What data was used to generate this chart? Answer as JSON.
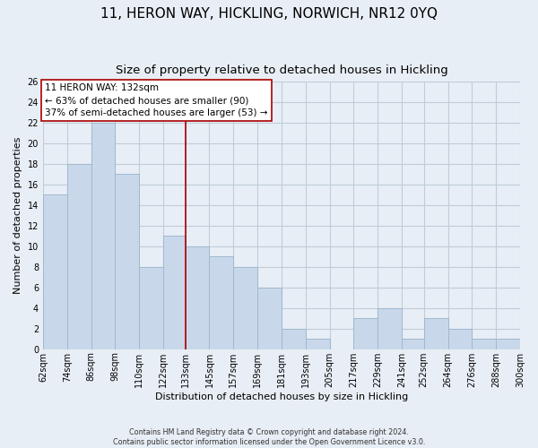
{
  "title": "11, HERON WAY, HICKLING, NORWICH, NR12 0YQ",
  "subtitle": "Size of property relative to detached houses in Hickling",
  "xlabel": "Distribution of detached houses by size in Hickling",
  "ylabel": "Number of detached properties",
  "footer_line1": "Contains HM Land Registry data © Crown copyright and database right 2024.",
  "footer_line2": "Contains public sector information licensed under the Open Government Licence v3.0.",
  "bar_edges": [
    62,
    74,
    86,
    98,
    110,
    122,
    133,
    145,
    157,
    169,
    181,
    193,
    205,
    217,
    229,
    241,
    252,
    264,
    276,
    288,
    300
  ],
  "bar_heights": [
    15,
    18,
    22,
    17,
    8,
    11,
    10,
    9,
    8,
    6,
    2,
    1,
    0,
    3,
    4,
    1,
    3,
    2,
    1,
    1
  ],
  "bar_color": "#c8d8ea",
  "bar_edgecolor": "#a0b8d0",
  "reference_line_x": 133,
  "reference_line_color": "#aa0000",
  "annotation_title": "11 HERON WAY: 132sqm",
  "annotation_line1": "← 63% of detached houses are smaller (90)",
  "annotation_line2": "37% of semi-detached houses are larger (53) →",
  "annotation_box_edgecolor": "#aa0000",
  "annotation_box_facecolor": "#ffffff",
  "xlim_left": 62,
  "xlim_right": 300,
  "ylim_top": 26,
  "ylim_bottom": 0,
  "yticks": [
    0,
    2,
    4,
    6,
    8,
    10,
    12,
    14,
    16,
    18,
    20,
    22,
    24,
    26
  ],
  "xtick_labels": [
    "62sqm",
    "74sqm",
    "86sqm",
    "98sqm",
    "110sqm",
    "122sqm",
    "133sqm",
    "145sqm",
    "157sqm",
    "169sqm",
    "181sqm",
    "193sqm",
    "205sqm",
    "217sqm",
    "229sqm",
    "241sqm",
    "252sqm",
    "264sqm",
    "276sqm",
    "288sqm",
    "300sqm"
  ],
  "xtick_positions": [
    62,
    74,
    86,
    98,
    110,
    122,
    133,
    145,
    157,
    169,
    181,
    193,
    205,
    217,
    229,
    241,
    252,
    264,
    276,
    288,
    300
  ],
  "background_color": "#e8eef5",
  "grid_color": "#c0ccd8",
  "title_fontsize": 11,
  "subtitle_fontsize": 9.5,
  "axis_label_fontsize": 8,
  "tick_fontsize": 7,
  "annotation_fontsize": 7.5,
  "footer_fontsize": 5.8
}
